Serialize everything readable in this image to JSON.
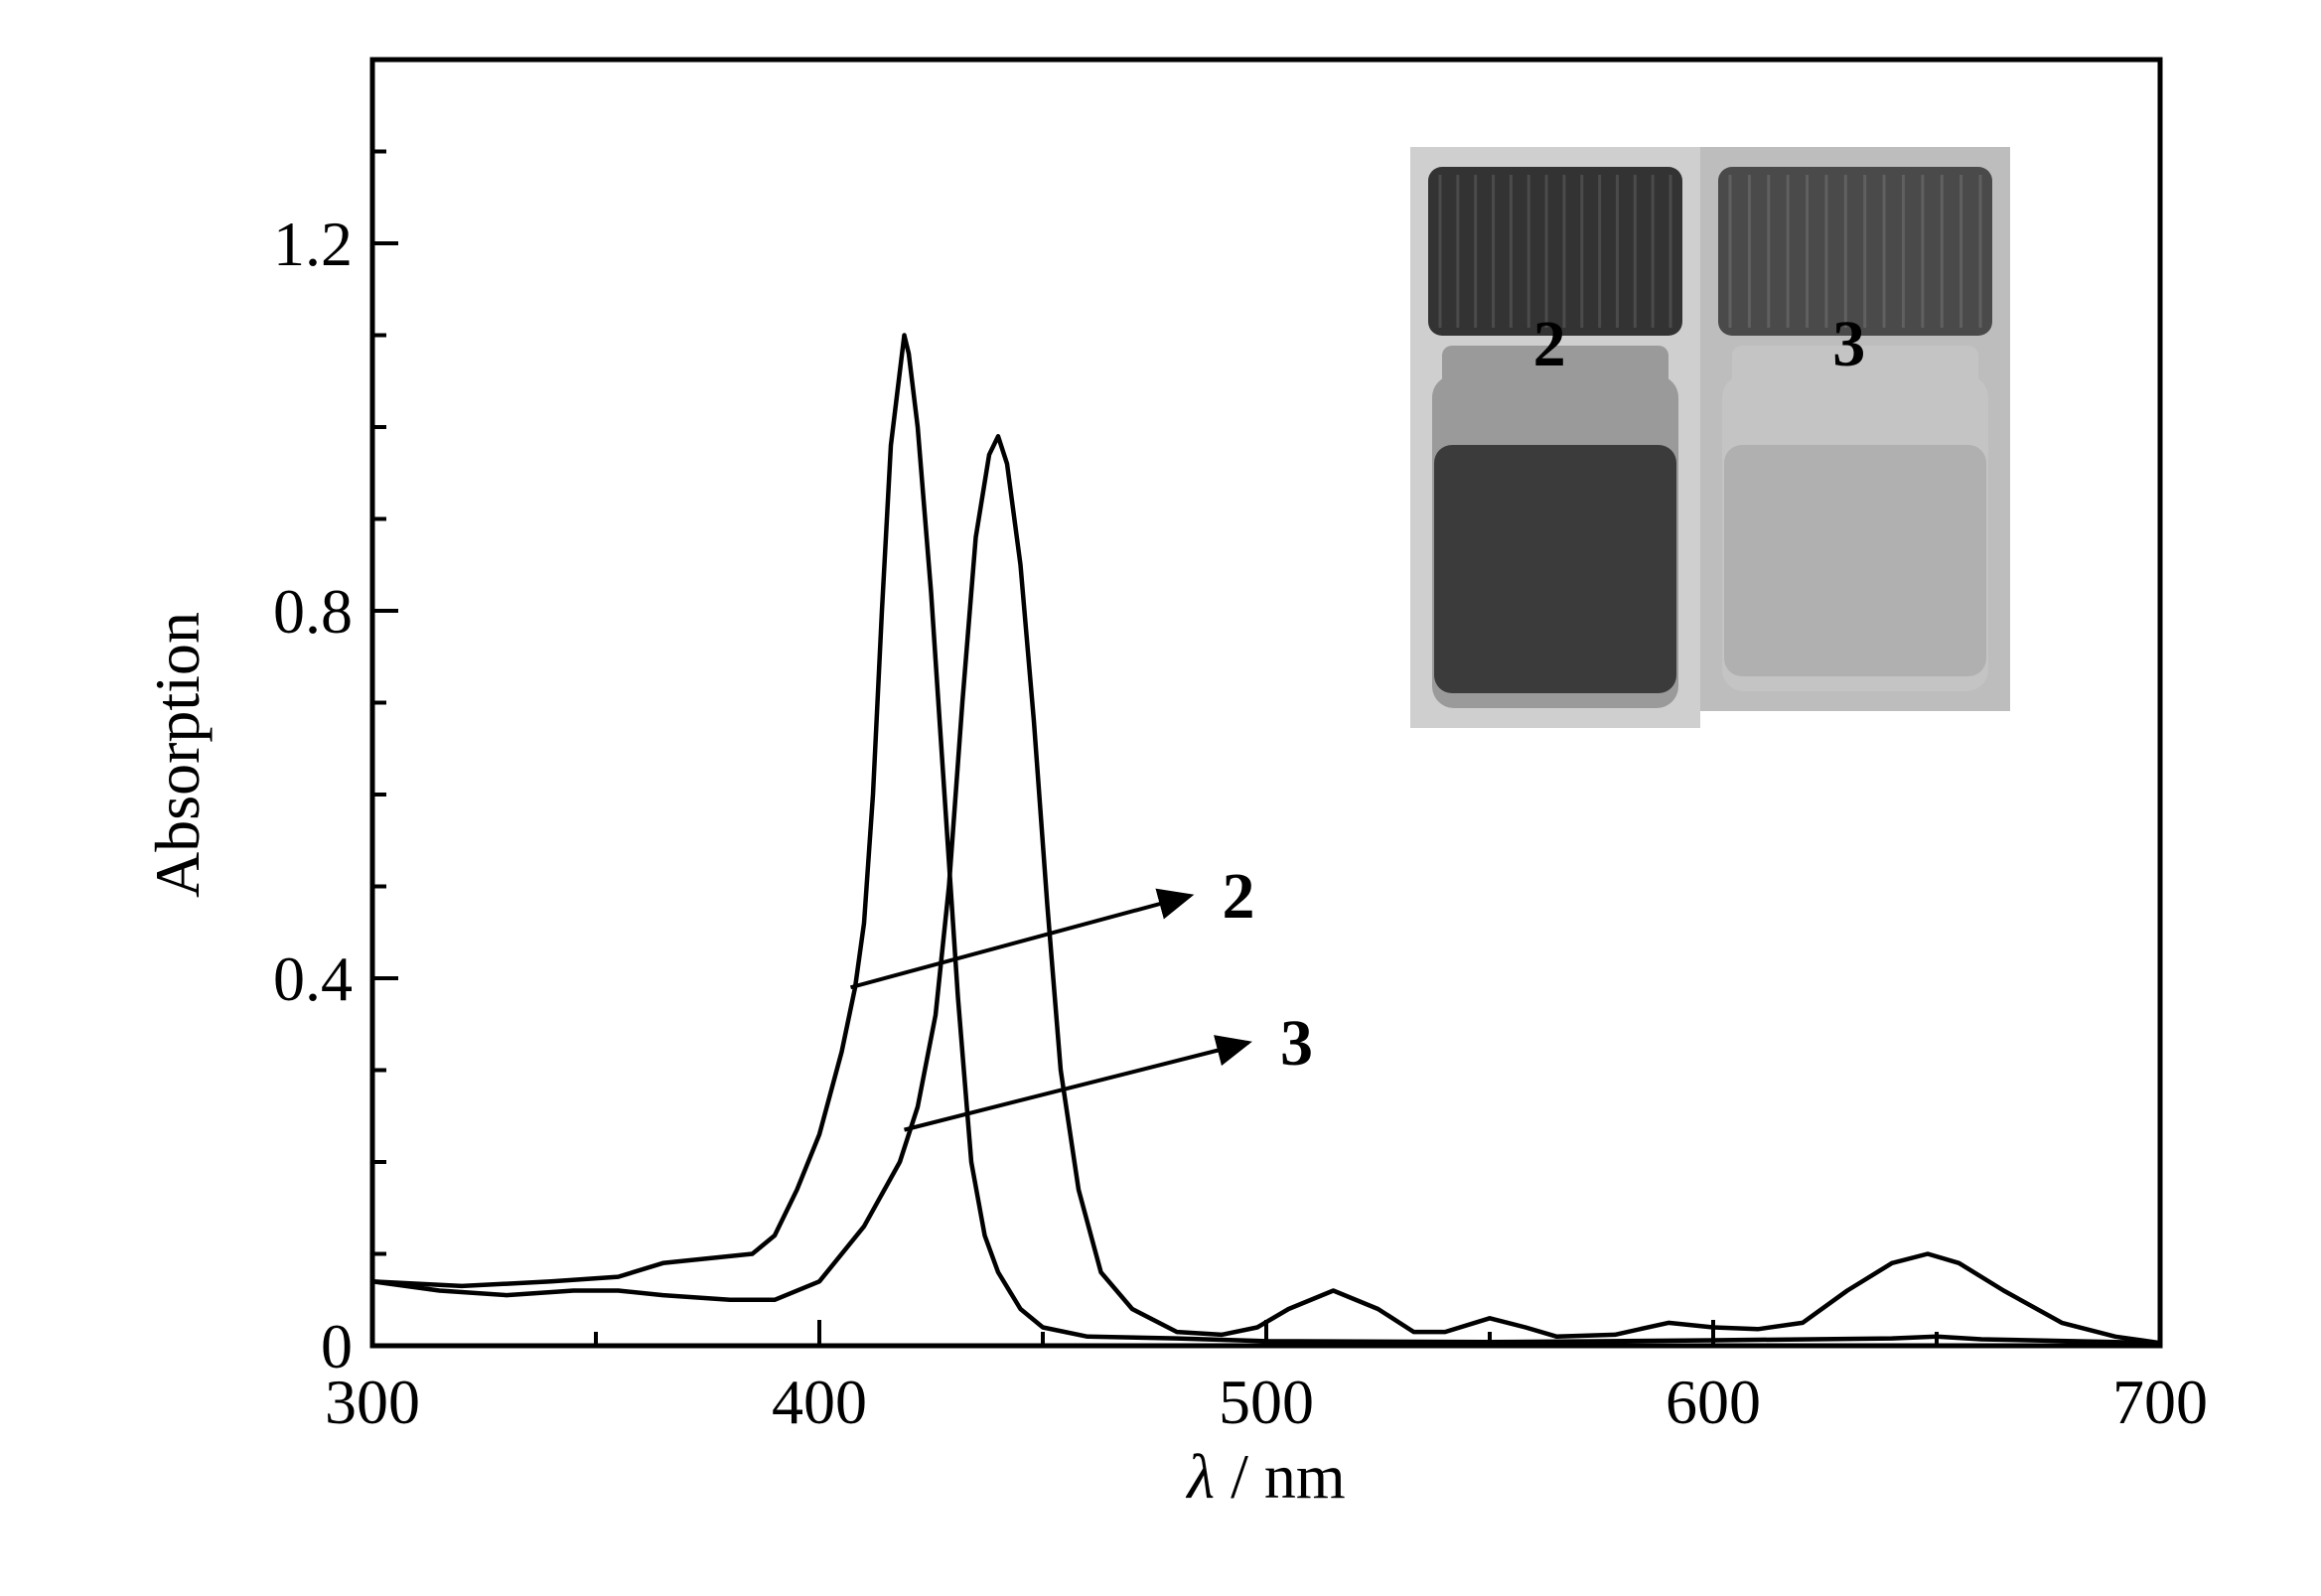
{
  "chart_data": {
    "type": "line",
    "xlabel_symbol": "λ",
    "xlabel_unit": " / nm",
    "ylabel": "Absorption",
    "xlim": [
      300,
      700
    ],
    "ylim": [
      0,
      1.4
    ],
    "x_ticks": [
      300,
      400,
      500,
      600,
      700
    ],
    "y_ticks": [
      {
        "value": 0,
        "label": "0"
      },
      {
        "value": 0.4,
        "label": "0.4"
      },
      {
        "value": 0.8,
        "label": "0.8"
      },
      {
        "value": 1.2,
        "label": "1.2"
      }
    ],
    "x_minor_ticks": [
      350,
      450,
      550,
      650
    ],
    "y_minor_ticks": [
      0.1,
      0.2,
      0.3,
      0.5,
      0.6,
      0.7,
      0.9,
      1.0,
      1.1,
      1.3
    ],
    "series": [
      {
        "name": "2",
        "color": "#000000",
        "points": [
          [
            300,
            0.07
          ],
          [
            320,
            0.065
          ],
          [
            340,
            0.07
          ],
          [
            355,
            0.075
          ],
          [
            365,
            0.09
          ],
          [
            375,
            0.095
          ],
          [
            385,
            0.1
          ],
          [
            390,
            0.12
          ],
          [
            395,
            0.17
          ],
          [
            400,
            0.23
          ],
          [
            405,
            0.32
          ],
          [
            408,
            0.39
          ],
          [
            410,
            0.46
          ],
          [
            412,
            0.6
          ],
          [
            414,
            0.8
          ],
          [
            416,
            0.98
          ],
          [
            418,
            1.06
          ],
          [
            419,
            1.1
          ],
          [
            420,
            1.08
          ],
          [
            422,
            1.0
          ],
          [
            425,
            0.82
          ],
          [
            428,
            0.6
          ],
          [
            431,
            0.38
          ],
          [
            434,
            0.2
          ],
          [
            437,
            0.12
          ],
          [
            440,
            0.08
          ],
          [
            445,
            0.04
          ],
          [
            450,
            0.02
          ],
          [
            460,
            0.01
          ],
          [
            480,
            0.008
          ],
          [
            500,
            0.005
          ],
          [
            550,
            0.004
          ],
          [
            600,
            0.006
          ],
          [
            640,
            0.008
          ],
          [
            650,
            0.01
          ],
          [
            660,
            0.007
          ],
          [
            700,
            0.003
          ]
        ],
        "annotation": {
          "from": [
            407,
            0.39
          ],
          "to": [
            483,
            0.49
          ]
        }
      },
      {
        "name": "3",
        "color": "#000000",
        "points": [
          [
            300,
            0.07
          ],
          [
            315,
            0.06
          ],
          [
            330,
            0.055
          ],
          [
            345,
            0.06
          ],
          [
            355,
            0.06
          ],
          [
            365,
            0.055
          ],
          [
            380,
            0.05
          ],
          [
            390,
            0.05
          ],
          [
            400,
            0.07
          ],
          [
            410,
            0.13
          ],
          [
            418,
            0.2
          ],
          [
            422,
            0.26
          ],
          [
            426,
            0.36
          ],
          [
            429,
            0.5
          ],
          [
            432,
            0.7
          ],
          [
            435,
            0.88
          ],
          [
            438,
            0.97
          ],
          [
            440,
            0.99
          ],
          [
            442,
            0.96
          ],
          [
            445,
            0.85
          ],
          [
            448,
            0.68
          ],
          [
            451,
            0.48
          ],
          [
            454,
            0.3
          ],
          [
            458,
            0.17
          ],
          [
            463,
            0.08
          ],
          [
            470,
            0.04
          ],
          [
            480,
            0.015
          ],
          [
            490,
            0.012
          ],
          [
            498,
            0.02
          ],
          [
            505,
            0.04
          ],
          [
            515,
            0.06
          ],
          [
            525,
            0.04
          ],
          [
            533,
            0.015
          ],
          [
            540,
            0.015
          ],
          [
            550,
            0.03
          ],
          [
            558,
            0.02
          ],
          [
            565,
            0.01
          ],
          [
            578,
            0.012
          ],
          [
            590,
            0.025
          ],
          [
            600,
            0.02
          ],
          [
            610,
            0.018
          ],
          [
            620,
            0.025
          ],
          [
            630,
            0.06
          ],
          [
            640,
            0.09
          ],
          [
            648,
            0.1
          ],
          [
            655,
            0.09
          ],
          [
            665,
            0.06
          ],
          [
            678,
            0.025
          ],
          [
            690,
            0.01
          ],
          [
            700,
            0.003
          ]
        ],
        "annotation": {
          "from": [
            419,
            0.235
          ],
          "to": [
            496,
            0.33
          ]
        }
      }
    ],
    "inset": {
      "vials": [
        {
          "label": "2",
          "cap_color": "#333333",
          "liquid_color": "#3b3b3b",
          "glass_color": "#9a9a9a",
          "bg_color": "#cfcfcf"
        },
        {
          "label": "3",
          "cap_color": "#4a4a4a",
          "liquid_color": "#b0b0b0",
          "glass_color": "#c4c4c4",
          "bg_color": "#bdbdbd"
        }
      ]
    }
  }
}
